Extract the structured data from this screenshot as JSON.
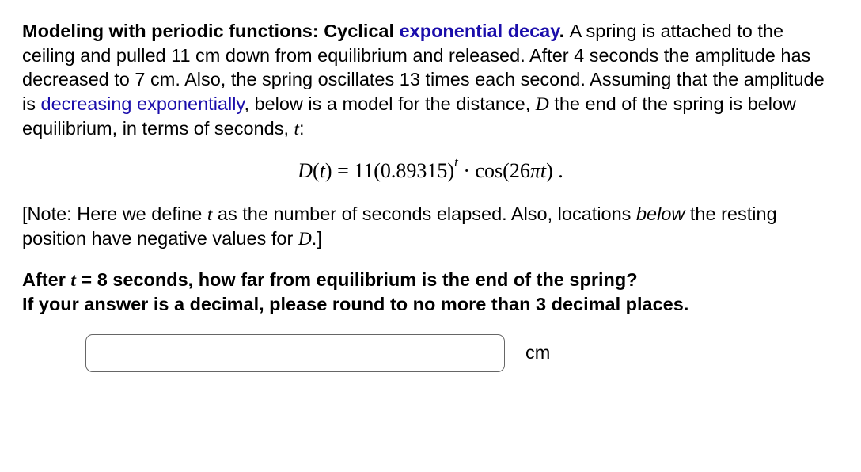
{
  "problem": {
    "title_prefix": "Modeling with periodic functions: Cyclical ",
    "title_link": "exponential decay",
    "title_suffix": ". ",
    "body_1": "A spring is attached to the ceiling and pulled 11 cm down from equilibrium and released. After 4 seconds the amplitude has decreased to 7 cm. Also, the spring oscillates 13 times each second. Assuming that the amplitude is ",
    "link_2": "decreasing exponentially",
    "body_2": ", below is a model for the distance, ",
    "var_D": "D",
    "body_3": " the end of the spring is below equilibrium, in terms of seconds, ",
    "var_t": "t",
    "body_4": ":"
  },
  "equation": {
    "lhs_var": "D",
    "lhs_paren_open": "(",
    "lhs_arg": "t",
    "lhs_paren_close": ") = 11(0.89315)",
    "exponent": "t",
    "mid": " · cos(26",
    "pi": "π",
    "arg2": "t",
    "close": ")  ."
  },
  "note": {
    "prefix": "[Note: Here we define ",
    "var_t": "t",
    "mid": " as the number of seconds elapsed. Also, locations ",
    "below": "below",
    "mid2": " the resting position have negative values for ",
    "var_D": "D",
    "suffix": ".]"
  },
  "question": {
    "line1_prefix": "After ",
    "var_t": "t",
    "equals": " = 8",
    "line1_suffix": " seconds, how far from equilibrium is the end of the spring?",
    "line2": "If your answer is a decimal, please round to no more than 3 decimal places."
  },
  "answer": {
    "value": "",
    "unit": "cm"
  },
  "styling": {
    "body_font_size": 23.5,
    "equation_font_size": 26,
    "link_color": "#1a0dab",
    "text_color": "#000000",
    "background_color": "#ffffff",
    "input_border_color": "#666666",
    "input_border_radius": 9,
    "input_width": 530,
    "input_height": 48
  }
}
